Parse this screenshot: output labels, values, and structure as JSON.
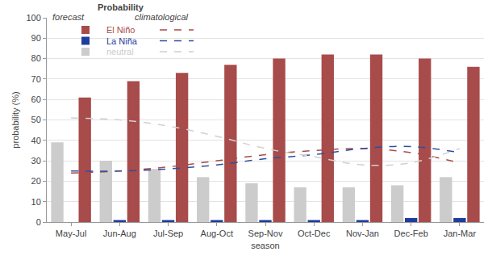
{
  "chart_data": {
    "type": "bar",
    "x_label": "season",
    "y_label": "probability (%)",
    "legend_title": "Probability",
    "legend_columns": [
      "forecast",
      "climatological"
    ],
    "legend": "upper left",
    "grid": true,
    "categories": [
      "May-Jul",
      "Jun-Aug",
      "Jul-Sep",
      "Aug-Oct",
      "Sep-Nov",
      "Oct-Dec",
      "Nov-Jan",
      "Dec-Feb",
      "Jan-Mar"
    ],
    "ylim": [
      0,
      100
    ],
    "yticks": [
      0,
      10,
      20,
      30,
      40,
      50,
      60,
      70,
      80,
      90,
      100
    ],
    "series": [
      {
        "name": "neutral",
        "type": "bar",
        "color": "#cccccc",
        "values": [
          39,
          30,
          26,
          22,
          19,
          17,
          17,
          18,
          22
        ]
      },
      {
        "name": "La Niña",
        "type": "bar",
        "color": "#1f3d9c",
        "values": [
          0,
          1,
          1,
          1,
          1,
          1,
          1,
          2,
          2
        ]
      },
      {
        "name": "El Niño",
        "type": "bar",
        "color": "#a84b4b",
        "values": [
          61,
          69,
          73,
          77,
          80,
          82,
          82,
          80,
          76
        ]
      },
      {
        "name": "El Niño",
        "type": "line",
        "line_style": "dashed",
        "color": "#a84b4b",
        "values": [
          24,
          25,
          27,
          30,
          33,
          35,
          36,
          34,
          29
        ]
      },
      {
        "name": "La Niña",
        "type": "line",
        "line_style": "dashed",
        "color": "#2e4fa0",
        "values": [
          25,
          25,
          26,
          28,
          31,
          33,
          36,
          37,
          34
        ]
      },
      {
        "name": "neutral",
        "type": "line",
        "line_style": "dashed",
        "color": "#d0d0d0",
        "values": [
          51,
          50,
          47,
          42,
          36,
          32,
          28,
          29,
          36
        ]
      }
    ]
  }
}
